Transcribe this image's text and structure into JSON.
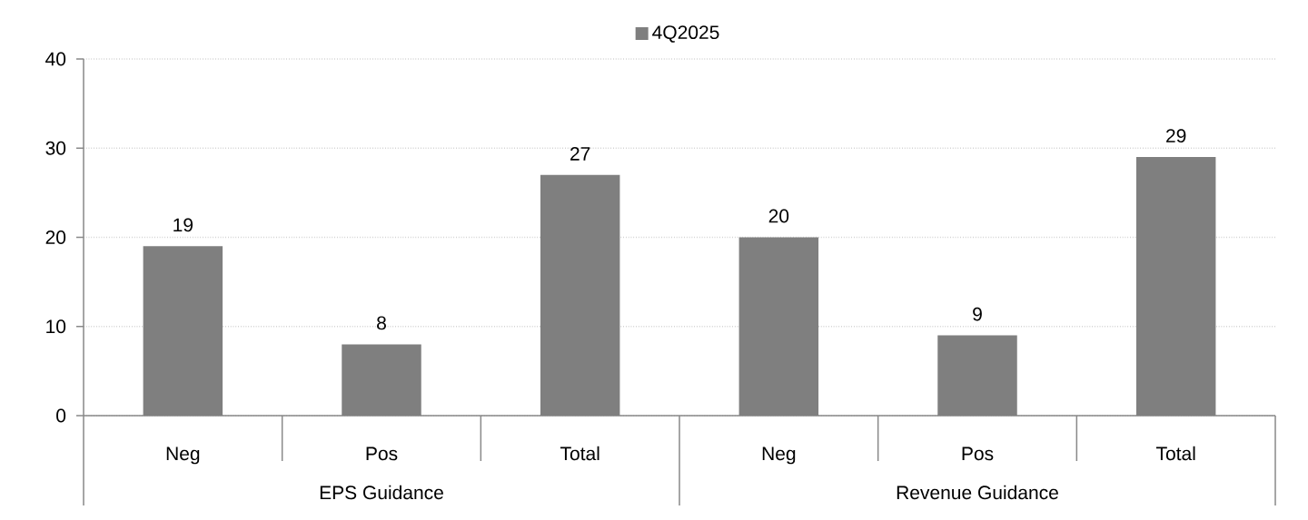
{
  "chart_data": {
    "type": "bar",
    "categories": [
      "Neg",
      "Pos",
      "Total",
      "Neg",
      "Pos",
      "Total"
    ],
    "series": [
      {
        "name": "4Q2025",
        "color": "#7f7f7f",
        "values": [
          19,
          8,
          27,
          20,
          9,
          29
        ]
      }
    ],
    "ylim": [
      0,
      40
    ],
    "yticks": [
      0,
      10,
      20,
      30,
      40
    ],
    "grid": "y",
    "legend": "top",
    "data_labels": true,
    "annotations": [
      "EPS Guidance",
      "Revenue Guidance"
    ]
  }
}
